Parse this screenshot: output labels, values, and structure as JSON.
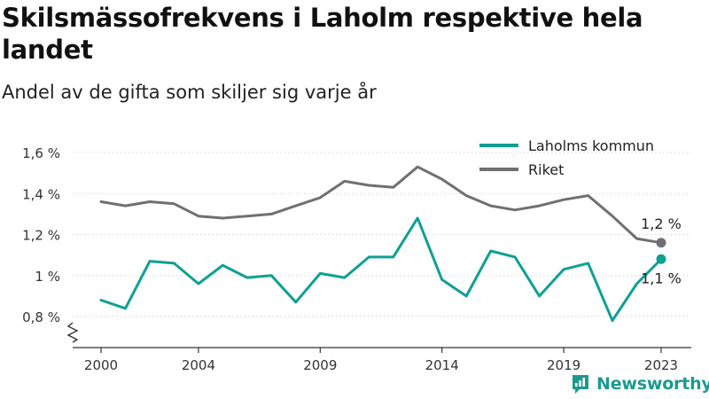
{
  "header": {
    "title": "Skilsmässofrekvens i Laholm respektive hela landet",
    "subtitle": "Andel av de gifta som skiljer sig varje år"
  },
  "brand": {
    "name": "Newsworthy",
    "icon": "newsworthy-logo-icon",
    "color": "#1b9a8f"
  },
  "chart_data": {
    "type": "line",
    "title": "Skilsmässofrekvens i Laholm respektive hela landet",
    "subtitle": "Andel av de gifta som skiljer sig varje år",
    "xlabel": "",
    "ylabel": "",
    "x": [
      2000,
      2001,
      2002,
      2003,
      2004,
      2005,
      2006,
      2007,
      2008,
      2009,
      2010,
      2011,
      2012,
      2013,
      2014,
      2015,
      2016,
      2017,
      2018,
      2019,
      2020,
      2021,
      2022,
      2023
    ],
    "x_ticks": [
      "2000",
      "2004",
      "2009",
      "2014",
      "2019",
      "2023"
    ],
    "y_ticks": [
      "0,8 %",
      "1 %",
      "1,2 %",
      "1,4 %",
      "1,6 %"
    ],
    "ylim": [
      0.8,
      1.6
    ],
    "grid": true,
    "legend_position": "top-right",
    "series": [
      {
        "name": "Laholms kommun",
        "color": "#0fa094",
        "values": [
          0.88,
          0.84,
          1.07,
          1.06,
          0.96,
          1.05,
          0.99,
          1.0,
          0.87,
          1.01,
          0.99,
          1.09,
          1.09,
          1.28,
          0.98,
          0.9,
          1.12,
          1.09,
          0.9,
          1.03,
          1.06,
          0.78,
          0.96,
          1.08
        ],
        "end_label": "1,1 %"
      },
      {
        "name": "Riket",
        "color": "#707074",
        "values": [
          1.36,
          1.34,
          1.36,
          1.35,
          1.29,
          1.28,
          1.29,
          1.3,
          1.34,
          1.38,
          1.46,
          1.44,
          1.43,
          1.53,
          1.47,
          1.39,
          1.34,
          1.32,
          1.34,
          1.37,
          1.39,
          1.29,
          1.18,
          1.16
        ],
        "end_label": "1,2 %"
      }
    ]
  }
}
